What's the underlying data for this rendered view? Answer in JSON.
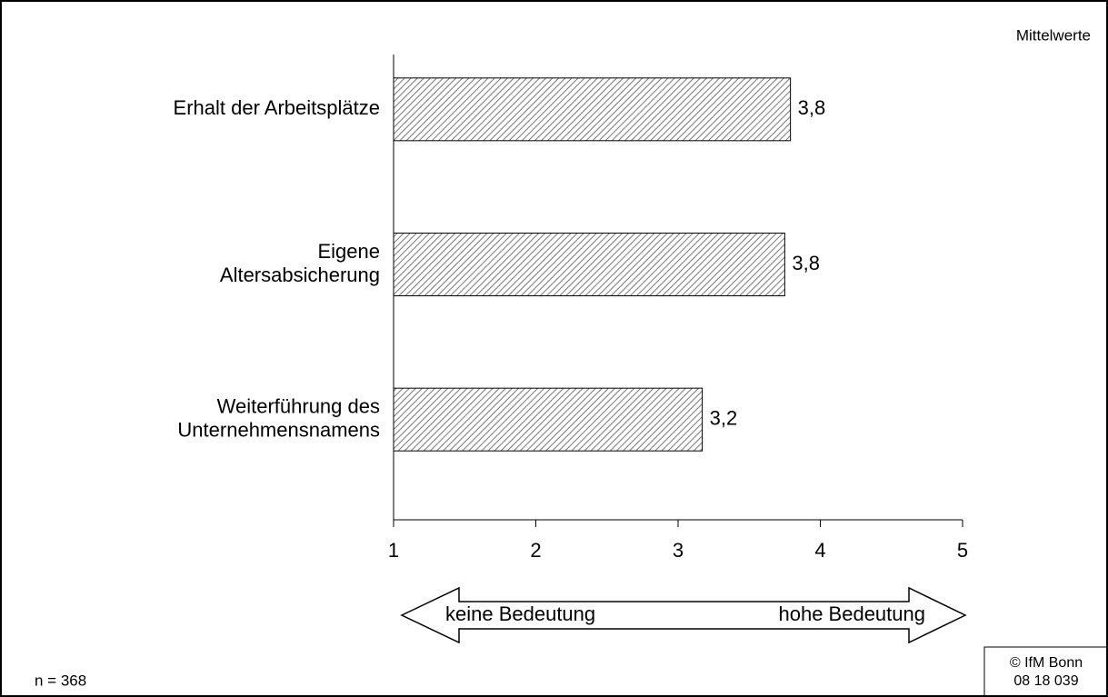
{
  "chart_data": {
    "type": "barh",
    "categories": [
      "Erhalt der Arbeitsplätze",
      "Eigene\nAltersabsicherung",
      "Weiterführung des\nUnternehmensnamens"
    ],
    "values": [
      3.79,
      3.75,
      3.17
    ],
    "value_labels": [
      "3,8",
      "3,8",
      "3,2"
    ],
    "xlim": [
      1,
      5
    ],
    "xticks": [
      1,
      2,
      3,
      4,
      5
    ],
    "unit_note": "Mittelwerte",
    "scale_low": "keine Bedeutung",
    "scale_high": "hohe Bedeutung",
    "sample": "n = 368",
    "source": "© IfM Bonn\n08  18  039"
  }
}
